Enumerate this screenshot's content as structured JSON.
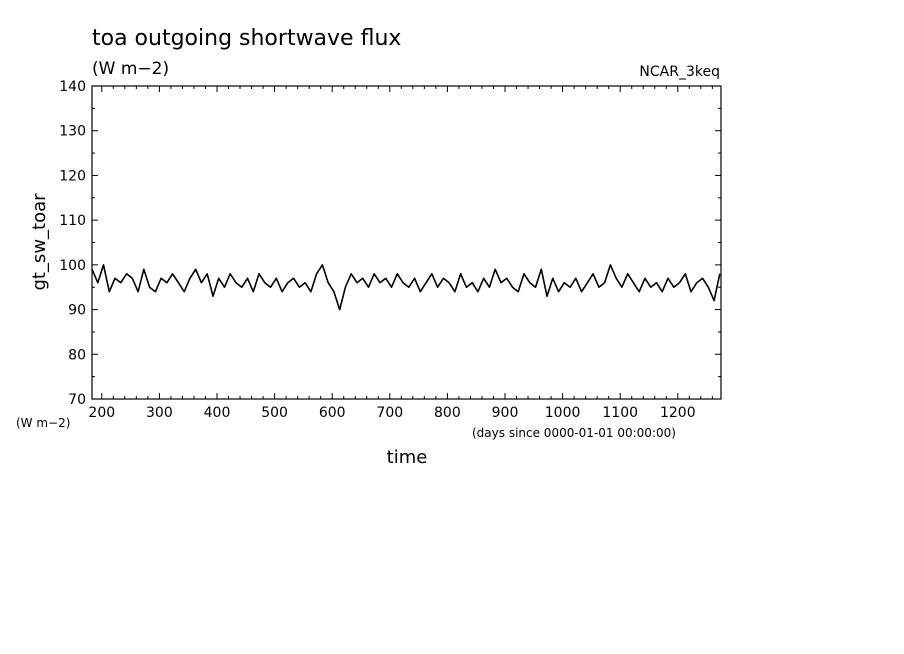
{
  "chart_data": {
    "type": "line",
    "title": "toa outgoing shortwave flux",
    "units": "(W m−2)",
    "source": "NCAR_3keq",
    "ylabel": "gt_sw_toar",
    "yunits": "(W m−2)",
    "xlabel": "time",
    "xunits": "(days since 0000-01-01 00:00:00)",
    "xlim": [
      183,
      1275
    ],
    "ylim": [
      70,
      140
    ],
    "xticks": [
      200,
      300,
      400,
      500,
      600,
      700,
      800,
      900,
      1000,
      1100,
      1200
    ],
    "yticks": [
      70,
      80,
      90,
      100,
      110,
      120,
      130,
      140
    ],
    "grid": false,
    "series": [
      {
        "x": [
          183,
          193,
          203,
          213,
          223,
          233,
          243,
          253,
          263,
          273,
          283,
          293,
          303,
          313,
          323,
          333,
          343,
          353,
          363,
          373,
          383,
          393,
          403,
          413,
          423,
          433,
          443,
          453,
          463,
          473,
          483,
          493,
          503,
          513,
          523,
          533,
          543,
          553,
          563,
          573,
          583,
          593,
          603,
          613,
          623,
          633,
          643,
          653,
          663,
          673,
          683,
          693,
          703,
          713,
          723,
          733,
          743,
          753,
          763,
          773,
          783,
          793,
          803,
          813,
          823,
          833,
          843,
          853,
          863,
          873,
          883,
          893,
          903,
          913,
          923,
          933,
          943,
          953,
          963,
          973,
          983,
          993,
          1003,
          1013,
          1023,
          1033,
          1043,
          1053,
          1063,
          1073,
          1083,
          1093,
          1103,
          1113,
          1123,
          1133,
          1143,
          1153,
          1163,
          1173,
          1183,
          1193,
          1203,
          1213,
          1223,
          1233,
          1243,
          1253,
          1263,
          1273
        ],
        "y": [
          99,
          96,
          100,
          94,
          97,
          96,
          98,
          97,
          94,
          99,
          95,
          94,
          97,
          96,
          98,
          96,
          94,
          97,
          99,
          96,
          98,
          93,
          97,
          95,
          98,
          96,
          95,
          97,
          94,
          98,
          96,
          95,
          97,
          94,
          96,
          97,
          95,
          96,
          94,
          98,
          100,
          96,
          94,
          90,
          95,
          98,
          96,
          97,
          95,
          98,
          96,
          97,
          95,
          98,
          96,
          95,
          97,
          94,
          96,
          98,
          95,
          97,
          96,
          94,
          98,
          95,
          96,
          94,
          97,
          95,
          99,
          96,
          97,
          95,
          94,
          98,
          96,
          95,
          99,
          93,
          97,
          94,
          96,
          95,
          97,
          94,
          96,
          98,
          95,
          96,
          100,
          97,
          95,
          98,
          96,
          94,
          97,
          95,
          96,
          94,
          97,
          95,
          96,
          98,
          94,
          96,
          97,
          95,
          92,
          98
        ]
      }
    ]
  }
}
